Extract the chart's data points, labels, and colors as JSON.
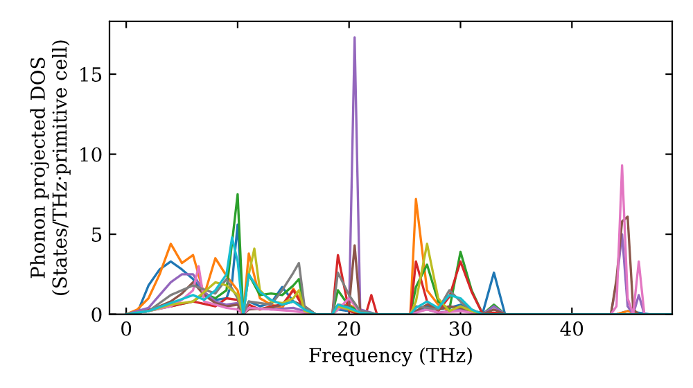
{
  "chart_data": {
    "type": "line",
    "xlabel": "Frequency (THz)",
    "ylabel": "Phonon projected DOS\n(States/THz·primitive cell)",
    "xlim": [
      -1.5,
      49
    ],
    "ylim": [
      0,
      18.3
    ],
    "xticks": [
      0,
      10,
      20,
      30,
      40
    ],
    "yticks": [
      0,
      5,
      10,
      15
    ],
    "grid": false,
    "legend": false,
    "marker": "none",
    "line_style": "solid",
    "series": [
      {
        "color": "#1f77b4",
        "x": [
          0,
          1,
          2,
          3,
          4,
          5,
          6,
          7,
          8,
          9,
          9.5,
          10,
          10.5,
          11,
          12,
          13,
          14,
          15,
          16,
          17,
          18.5,
          19,
          20,
          21,
          22.5,
          25.5,
          26,
          27,
          28,
          29,
          30,
          31,
          32,
          33,
          34,
          44,
          45,
          46,
          47,
          49
        ],
        "values": [
          0,
          0.1,
          1.8,
          2.8,
          3.3,
          2.8,
          2.2,
          1.2,
          0.9,
          1.0,
          2.0,
          5.6,
          0,
          0.8,
          0.5,
          0.7,
          1.7,
          0.8,
          0.4,
          0,
          0,
          0.3,
          0.2,
          0.1,
          0,
          0,
          0.2,
          0.5,
          0.3,
          0.4,
          0.6,
          0.2,
          0.1,
          2.6,
          0,
          0,
          0.2,
          0.1,
          0,
          0
        ]
      },
      {
        "color": "#ff7f0e",
        "x": [
          0,
          1,
          2,
          3,
          4,
          5,
          6,
          7,
          8,
          9,
          10,
          10.5,
          11,
          12,
          13,
          14,
          15,
          16,
          17,
          18.5,
          19,
          20,
          21,
          22.5,
          25.5,
          26,
          27,
          28,
          29,
          30,
          31,
          32,
          33,
          34,
          44,
          45,
          46,
          47,
          49
        ],
        "values": [
          0,
          0.3,
          1.0,
          2.5,
          4.4,
          3.2,
          3.7,
          1.2,
          3.5,
          2.4,
          1.5,
          0,
          3.8,
          1.0,
          0.6,
          0.4,
          1.6,
          0.5,
          0,
          0,
          0.5,
          0.6,
          0.2,
          0,
          0,
          7.2,
          1.5,
          0.6,
          0.2,
          0.4,
          0.3,
          0,
          0.1,
          0,
          0,
          0.2,
          0,
          0,
          0
        ]
      },
      {
        "color": "#2ca02c",
        "x": [
          0,
          2,
          4,
          6,
          7,
          8,
          9,
          10,
          10.5,
          11,
          12,
          13,
          14,
          15,
          15.5,
          16,
          17,
          18.5,
          19,
          20,
          21,
          22.5,
          25.5,
          26,
          27,
          28,
          29,
          30,
          31,
          32,
          33,
          34,
          49
        ],
        "values": [
          0,
          0.2,
          0.5,
          0.8,
          1.3,
          1.0,
          1.5,
          7.5,
          0,
          2.5,
          1.2,
          1.3,
          1.2,
          1.8,
          2.2,
          0.3,
          0,
          0,
          1.5,
          0.5,
          0.2,
          0,
          0,
          1.7,
          3.1,
          0.8,
          0.3,
          3.9,
          1.5,
          0,
          0.6,
          0,
          0
        ]
      },
      {
        "color": "#d62728",
        "x": [
          0,
          2,
          4,
          6,
          8,
          9,
          10,
          10.5,
          11,
          12,
          13,
          14,
          15,
          16,
          17,
          18.5,
          19,
          20,
          21,
          21.5,
          22,
          22.5,
          25.5,
          26,
          27,
          28,
          29,
          30,
          31,
          32,
          33,
          34,
          49
        ],
        "values": [
          0,
          0.3,
          0.5,
          0.8,
          0.5,
          1.0,
          0.9,
          0,
          0.6,
          0.3,
          0.5,
          0.6,
          1.5,
          0.3,
          0,
          0,
          3.7,
          0.2,
          0,
          0,
          1.2,
          0,
          0,
          3.3,
          0.8,
          0.2,
          1.1,
          3.3,
          1.4,
          0,
          0.1,
          0,
          0
        ]
      },
      {
        "color": "#9467bd",
        "x": [
          0,
          2,
          3,
          4,
          5,
          6,
          7,
          8,
          9,
          10,
          10.5,
          11,
          13,
          15,
          17,
          18.5,
          19,
          20,
          20.5,
          21,
          22.5,
          25.5,
          26,
          27,
          28,
          30,
          32,
          33,
          34,
          43.5,
          44,
          44.5,
          45,
          45.5,
          46,
          46.5,
          49
        ],
        "values": [
          0,
          0.4,
          1.2,
          2.0,
          2.5,
          2.5,
          1.4,
          0.8,
          0.6,
          0.7,
          0,
          0.4,
          0.3,
          0.4,
          0,
          0,
          0.4,
          0.3,
          17.3,
          0.3,
          0,
          0,
          0.2,
          0.3,
          0.1,
          0.3,
          0,
          0.5,
          0,
          0,
          2.0,
          5.0,
          0.5,
          0,
          1.2,
          0,
          0
        ]
      },
      {
        "color": "#8c564b",
        "x": [
          0,
          2,
          4,
          5,
          6,
          7,
          8,
          9,
          10,
          10.5,
          11,
          13,
          15,
          16,
          17,
          18.5,
          19,
          20,
          20.5,
          21,
          22.5,
          25.5,
          26,
          27,
          28,
          29,
          30,
          32,
          33,
          34,
          43.5,
          44,
          44.5,
          45,
          45.5,
          46,
          49
        ],
        "values": [
          0,
          0.2,
          0.8,
          1.3,
          2.0,
          1.2,
          0.7,
          0.5,
          0.6,
          0,
          0.3,
          0.4,
          0.8,
          0.5,
          0,
          0,
          0.6,
          0.5,
          4.3,
          0.2,
          0,
          0,
          0.2,
          0.6,
          0.3,
          0.5,
          0.4,
          0,
          0.3,
          0,
          0,
          2.2,
          5.8,
          6.1,
          0.3,
          0,
          0
        ]
      },
      {
        "color": "#e377c2",
        "x": [
          0,
          2,
          4,
          5,
          6,
          6.5,
          7,
          8,
          9,
          10,
          10.5,
          11,
          13,
          15,
          17,
          18.5,
          19,
          20,
          21,
          22.5,
          25.5,
          26,
          27,
          28,
          30,
          32,
          34,
          43.5,
          44,
          44.5,
          45,
          45.5,
          46,
          46.5,
          49
        ],
        "values": [
          0,
          0.2,
          0.5,
          0.9,
          1.5,
          3.0,
          0.8,
          0.6,
          0.4,
          0.3,
          0,
          0.4,
          0.3,
          0.2,
          0,
          0,
          0.3,
          1.0,
          0.1,
          0,
          0,
          0.1,
          0.3,
          0.1,
          0.2,
          0,
          0,
          0,
          0.5,
          9.3,
          1.0,
          0,
          3.3,
          0,
          0
        ]
      },
      {
        "color": "#7f7f7f",
        "x": [
          0,
          2,
          4,
          6,
          8,
          9,
          10,
          10.5,
          11,
          13,
          14,
          15,
          15.5,
          16,
          17,
          18.5,
          19,
          20,
          21,
          22.5,
          25.5,
          26,
          27,
          28,
          29,
          30,
          31,
          32,
          34,
          49
        ],
        "values": [
          0,
          0.2,
          1.2,
          1.8,
          1.3,
          2.2,
          1.0,
          0,
          0.8,
          0.6,
          1.5,
          2.6,
          3.2,
          0.5,
          0,
          0,
          2.6,
          1.2,
          0.2,
          0,
          0,
          0.5,
          0.4,
          0.3,
          1.5,
          0.8,
          0.2,
          0,
          0,
          0
        ]
      },
      {
        "color": "#bcbd22",
        "x": [
          0,
          2,
          4,
          6,
          8,
          9,
          10,
          10.5,
          11,
          11.5,
          12,
          13,
          14,
          15,
          15.5,
          16,
          17,
          18.5,
          19,
          20,
          21,
          22.5,
          25.5,
          26,
          27,
          28,
          29,
          30,
          31,
          32,
          34,
          49
        ],
        "values": [
          0,
          0.2,
          0.6,
          0.8,
          2.0,
          1.8,
          1.2,
          0,
          2.5,
          4.1,
          1.5,
          0.8,
          0.7,
          1.0,
          1.5,
          0.2,
          0,
          0,
          0.5,
          0.3,
          0.1,
          0,
          0,
          0.8,
          4.4,
          1.0,
          0.2,
          0.5,
          0.2,
          0,
          0,
          0
        ]
      },
      {
        "color": "#17becf",
        "x": [
          0,
          2,
          4,
          6,
          7,
          8,
          9,
          9.5,
          10,
          10.5,
          11,
          12,
          13,
          14,
          15,
          16,
          17,
          18.5,
          19,
          20,
          21,
          22.5,
          25.5,
          26,
          27,
          28,
          29,
          30,
          31,
          32,
          34,
          49
        ],
        "values": [
          0,
          0.2,
          0.7,
          1.2,
          0.9,
          1.5,
          2.5,
          4.8,
          3.3,
          0,
          2.5,
          1.4,
          0.9,
          0.6,
          0.8,
          0.3,
          0,
          0,
          0.6,
          0.4,
          0.1,
          0,
          0,
          0.4,
          0.8,
          0.4,
          1.2,
          1.0,
          0.3,
          0,
          0,
          0
        ]
      }
    ]
  }
}
